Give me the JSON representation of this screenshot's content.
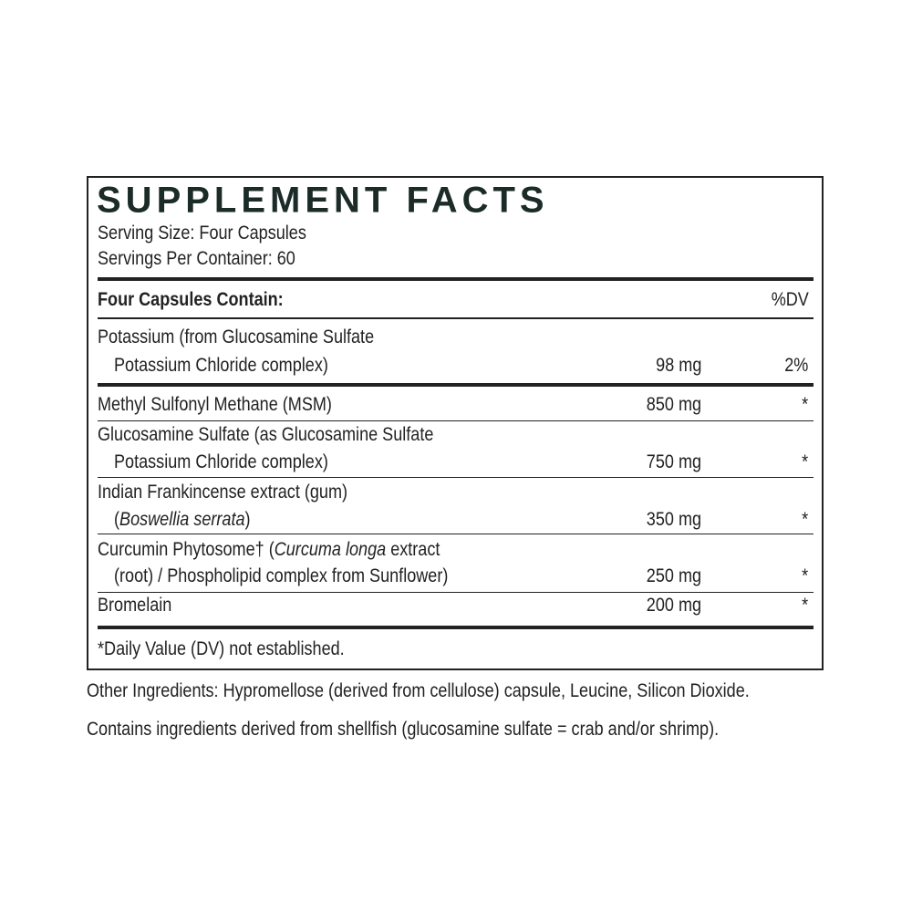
{
  "title": "SUPPLEMENT FACTS",
  "serving_size": "Serving Size: Four Capsules",
  "servings_per_container": "Servings Per Container: 60",
  "table": {
    "header": {
      "label": "Four Capsules Contain:",
      "dv": "%DV"
    },
    "rows": [
      {
        "lines": [
          [
            "Potassium (from Glucosamine Sulfate"
          ],
          [
            "Potassium Chloride complex)"
          ]
        ],
        "amount": "98 mg",
        "dv": "2%"
      },
      {
        "lines": [
          [
            "Methyl Sulfonyl Methane (MSM)"
          ]
        ],
        "amount": "850 mg",
        "dv": "*"
      },
      {
        "lines": [
          [
            "Glucosamine Sulfate (as Glucosamine Sulfate"
          ],
          [
            "Potassium Chloride complex)"
          ]
        ],
        "amount": "750 mg",
        "dv": "*"
      },
      {
        "lines": [
          [
            "Indian Frankincense extract (gum)"
          ],
          [
            "(",
            {
              "text": "Boswellia serrata",
              "italic": true
            },
            ")"
          ]
        ],
        "amount": "350 mg",
        "dv": "*"
      },
      {
        "lines": [
          [
            "Curcumin Phytosome† (",
            {
              "text": "Curcuma longa",
              "italic": true
            },
            " extract"
          ],
          [
            "(root) / Phospholipid complex from Sunflower)"
          ]
        ],
        "amount": "250 mg",
        "dv": "*"
      },
      {
        "lines": [
          [
            "Bromelain"
          ]
        ],
        "amount": "200 mg",
        "dv": "*"
      }
    ]
  },
  "footnote": "*Daily Value (DV) not established.",
  "other_ingredients": "Other Ingredients: Hypromellose (derived from cellulose) capsule, Leucine, Silicon Dioxide.",
  "allergen_note": "Contains ingredients derived from shellfish (glucosamine sulfate = crab and/or shrimp)."
}
